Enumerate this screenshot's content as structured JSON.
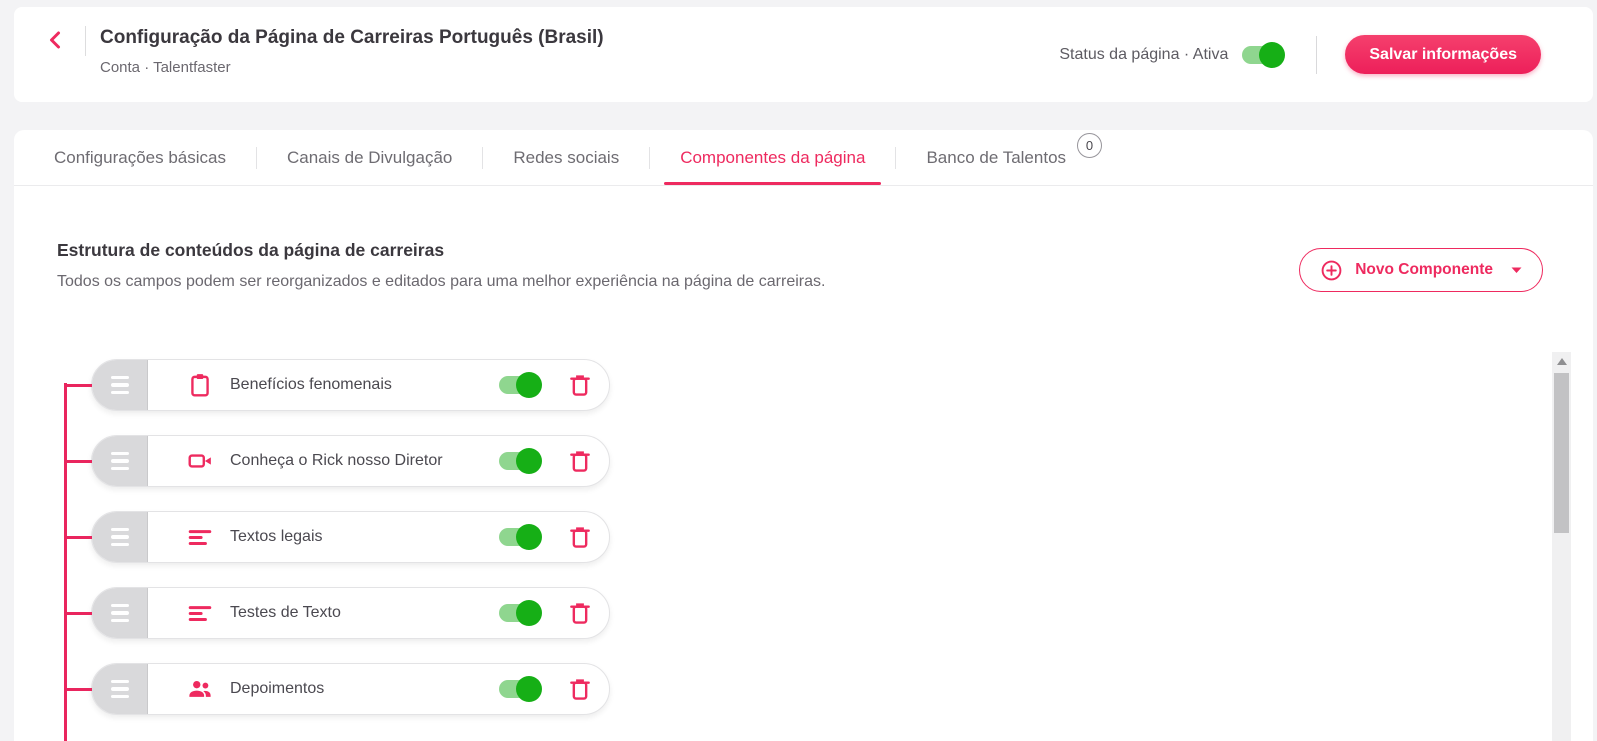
{
  "header": {
    "title": "Configuração da Página de Carreiras Português (Brasil)",
    "breadcrumb": "Conta · Talentfaster",
    "status_label": "Status da página · Ativa",
    "status_enabled": true,
    "save_button_label": "Salvar informações"
  },
  "tabs": [
    {
      "label": "Configurações básicas",
      "active": false
    },
    {
      "label": "Canais de Divulgação",
      "active": false
    },
    {
      "label": "Redes sociais",
      "active": false
    },
    {
      "label": "Componentes da página",
      "active": true
    },
    {
      "label": "Banco de Talentos",
      "active": false,
      "badge": "0"
    }
  ],
  "section": {
    "title": "Estrutura de conteúdos da página de carreiras",
    "subtitle": "Todos os campos podem ser reorganizados e editados para uma melhor experiência na página de carreiras.",
    "new_component_label": "Novo Componente"
  },
  "components": [
    {
      "label": "Benefícios fenomenais",
      "icon": "clipboard-icon",
      "enabled": true
    },
    {
      "label": "Conheça o Rick nosso Diretor",
      "icon": "video-icon",
      "enabled": true
    },
    {
      "label": "Textos legais",
      "icon": "text-icon",
      "enabled": true
    },
    {
      "label": "Testes de Texto",
      "icon": "text-icon",
      "enabled": true
    },
    {
      "label": "Depoimentos",
      "icon": "people-icon",
      "enabled": true
    }
  ],
  "colors": {
    "pink": "#ee2a5f",
    "track": "#8fd68f",
    "knob": "#16af16"
  }
}
